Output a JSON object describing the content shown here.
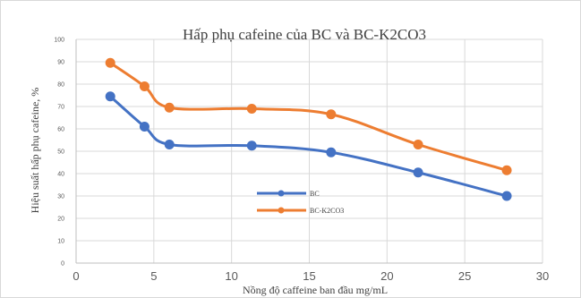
{
  "chart_data": {
    "type": "line",
    "title": "Hấp phụ cafeine của BC và BC-K2CO3",
    "xlabel": "Nồng độ caffeine ban đầu mg/mL",
    "ylabel": "Hiệu suất hấp phụ cafeine, %",
    "xlim": [
      0,
      30
    ],
    "ylim": [
      0,
      100
    ],
    "xticks": [
      0,
      5,
      10,
      15,
      20,
      25,
      30
    ],
    "yticks": [
      0,
      10,
      20,
      30,
      40,
      50,
      60,
      70,
      80,
      90,
      100
    ],
    "grid": true,
    "legend_position": "bottom-center",
    "series": [
      {
        "name": "BC",
        "color": "#4472C4",
        "x": [
          2.2,
          4.4,
          6.0,
          11.3,
          16.4,
          22.0,
          27.7
        ],
        "y": [
          74.5,
          61,
          53,
          52.5,
          49.5,
          40.5,
          30
        ]
      },
      {
        "name": "BC-K2CO3",
        "color": "#ED7D31",
        "x": [
          2.2,
          4.4,
          6.0,
          11.3,
          16.4,
          22.0,
          27.7
        ],
        "y": [
          89.5,
          79,
          69.5,
          69,
          66.5,
          53,
          41.5
        ]
      }
    ]
  }
}
